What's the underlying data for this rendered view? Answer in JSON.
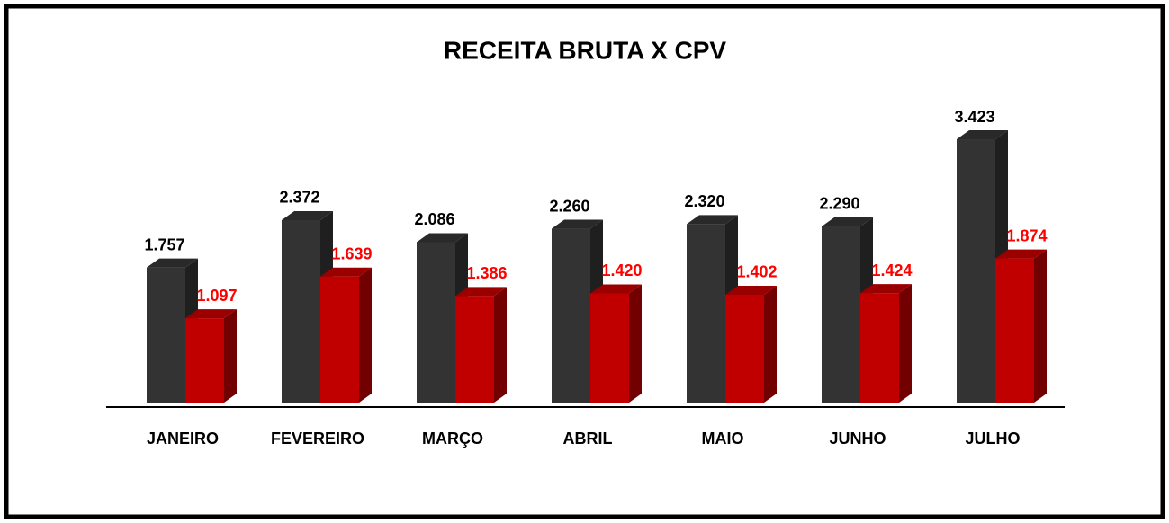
{
  "chart_data": {
    "type": "bar3d",
    "title": "RECEITA BRUTA X CPV",
    "categories": [
      "JANEIRO",
      "FEVEREIRO",
      "MARÇO",
      "ABRIL",
      "MAIO",
      "JUNHO",
      "JULHO"
    ],
    "series": [
      {
        "color": "#333333",
        "values": [
          1757,
          2372,
          2086,
          2260,
          2320,
          2290,
          3423
        ],
        "value_labels": [
          "1.757",
          "2.372",
          "2.086",
          "2.260",
          "2.320",
          "2.290",
          "3.423"
        ],
        "label_color": "#000000"
      },
      {
        "color": "#c00000",
        "values": [
          1097,
          1639,
          1386,
          1420,
          1402,
          1424,
          1874
        ],
        "value_labels": [
          "1.097",
          "1.639",
          "1.386",
          "1.420",
          "1.402",
          "1.424",
          "1.874"
        ],
        "label_color": "#ff0000"
      }
    ]
  }
}
